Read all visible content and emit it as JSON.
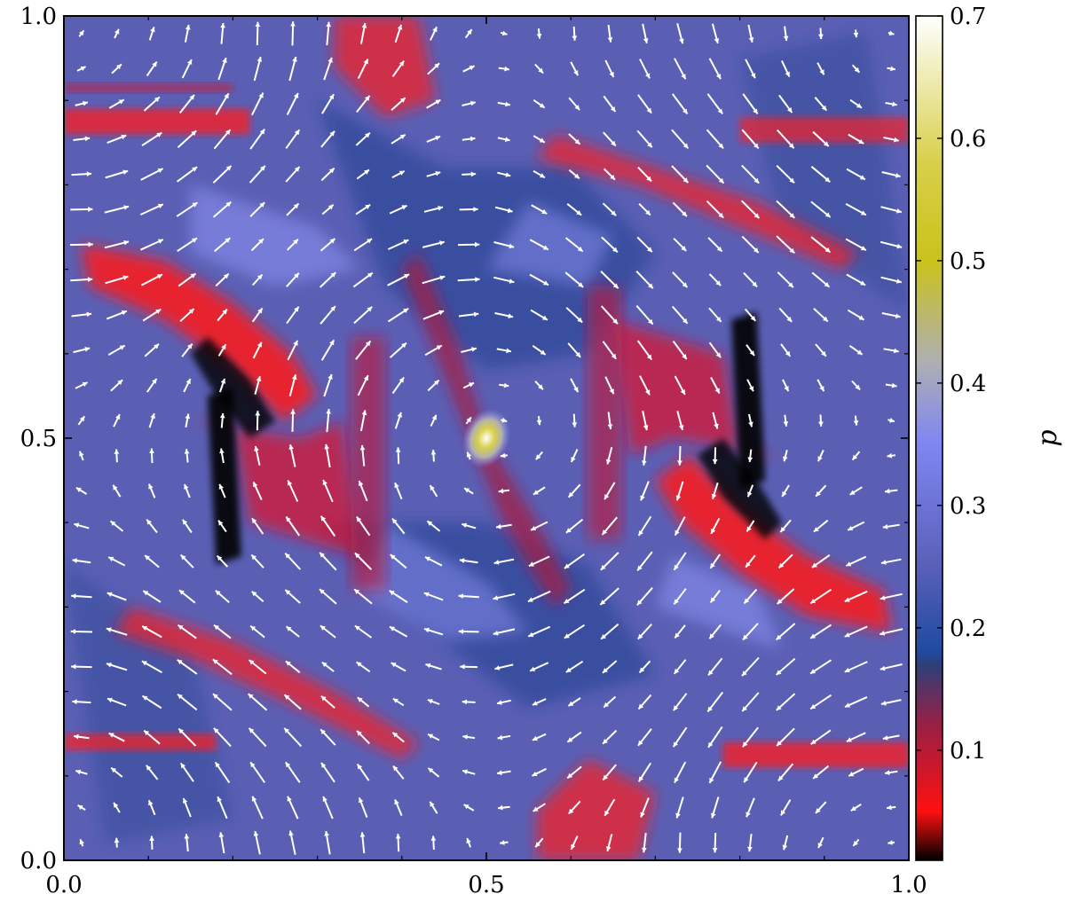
{
  "chart_data": {
    "type": "heatmap",
    "title": "",
    "xlabel": "",
    "ylabel": "",
    "xlim": [
      0.0,
      1.0
    ],
    "ylim": [
      0.0,
      1.0
    ],
    "x_ticks": [
      "0.0",
      "0.5",
      "1.0"
    ],
    "y_ticks": [
      "0.0",
      "0.5",
      "1.0"
    ],
    "grid": false,
    "field_quantity": "p",
    "overlay": "velocity-quiver",
    "colorbar": {
      "label": "p",
      "range": [
        0.01,
        0.7
      ],
      "ticks": [
        "0.1",
        "0.2",
        "0.3",
        "0.4",
        "0.5",
        "0.6",
        "0.7"
      ],
      "tick_values": [
        0.1,
        0.2,
        0.3,
        0.4,
        0.5,
        0.6,
        0.7
      ],
      "placement": "right",
      "colormap": [
        {
          "value": 0.01,
          "color": "#000000"
        },
        {
          "value": 0.05,
          "color": "#ff1010"
        },
        {
          "value": 0.12,
          "color": "#9a1f45"
        },
        {
          "value": 0.17,
          "color": "#2e3f78"
        },
        {
          "value": 0.18,
          "color": "#1f4aa0"
        },
        {
          "value": 0.25,
          "color": "#5a5fb8"
        },
        {
          "value": 0.35,
          "color": "#7f86f2"
        },
        {
          "value": 0.42,
          "color": "#b0b0b0"
        },
        {
          "value": 0.5,
          "color": "#c9c21a"
        },
        {
          "value": 0.58,
          "color": "#d8d04a"
        },
        {
          "value": 0.7,
          "color": "#ffffff"
        }
      ]
    }
  }
}
